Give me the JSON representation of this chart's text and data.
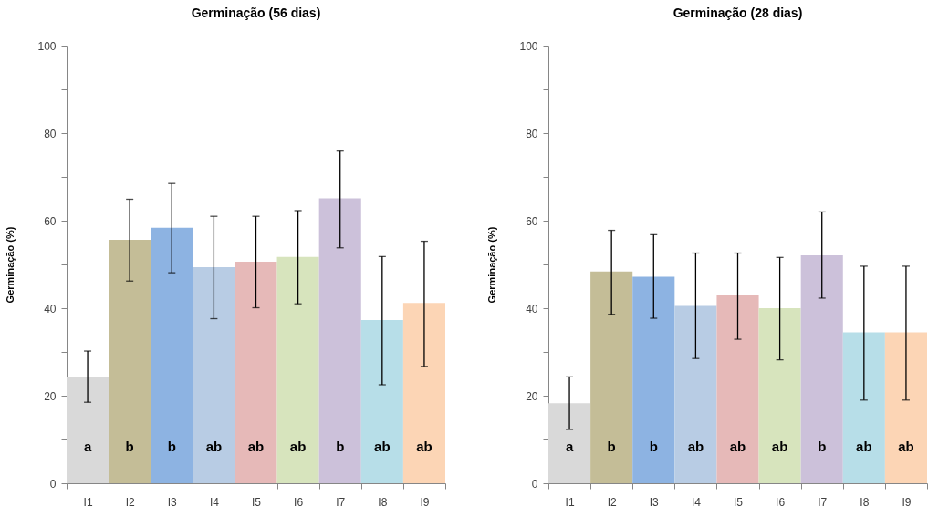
{
  "chart_data": [
    {
      "type": "bar",
      "title": "Germinação (56 dias)",
      "ylabel": "Germinação (%)",
      "categories": [
        "I1",
        "I2",
        "I3",
        "I4",
        "I5",
        "I6",
        "I7",
        "I8",
        "I9"
      ],
      "values": [
        24.3,
        55.6,
        58.4,
        49.4,
        50.6,
        51.7,
        65.1,
        37.3,
        41.2
      ],
      "value_labels": [
        "a",
        "b",
        "b",
        "ab",
        "ab",
        "ab",
        "b",
        "ab",
        "ab"
      ],
      "colors": [
        "#d9d9d9",
        "#c4bd97",
        "#8db3e2",
        "#b8cce4",
        "#e6b9b8",
        "#d7e4bd",
        "#ccc1da",
        "#b7dee8",
        "#fcd5b5"
      ],
      "errors": [
        [
          18.5,
          30.2
        ],
        [
          46.2,
          64.9
        ],
        [
          48.1,
          68.5
        ],
        [
          37.6,
          61.0
        ],
        [
          40.1,
          61.0
        ],
        [
          41.0,
          62.3
        ],
        [
          53.8,
          75.9
        ],
        [
          22.5,
          51.8
        ],
        [
          26.7,
          55.3
        ]
      ],
      "ylim": [
        0,
        100
      ],
      "yticks": [
        0,
        {
          "value": 10,
          "label": null
        },
        20,
        {
          "value": 30,
          "label": null
        },
        40,
        {
          "value": 50,
          "label": null
        },
        60,
        {
          "value": 70,
          "label": null
        },
        80,
        {
          "value": 90,
          "label": null
        },
        100
      ]
    },
    {
      "type": "bar",
      "title": "Germinação (28 dias)",
      "ylabel": "Germinação (%)",
      "categories": [
        "I1",
        "I2",
        "I3",
        "I4",
        "I5",
        "I6",
        "I7",
        "I8",
        "I9"
      ],
      "values": [
        18.3,
        48.4,
        47.2,
        40.5,
        43.0,
        40.0,
        52.1,
        34.5,
        34.5
      ],
      "value_labels": [
        "a",
        "b",
        "b",
        "ab",
        "ab",
        "ab",
        "b",
        "ab",
        "ab"
      ],
      "colors": [
        "#d9d9d9",
        "#c4bd97",
        "#8db3e2",
        "#b8cce4",
        "#e6b9b8",
        "#d7e4bd",
        "#ccc1da",
        "#b7dee8",
        "#fcd5b5"
      ],
      "errors": [
        [
          12.3,
          24.3
        ],
        [
          38.6,
          57.8
        ],
        [
          37.7,
          56.8
        ],
        [
          28.5,
          52.6
        ],
        [
          32.9,
          52.6
        ],
        [
          28.2,
          51.6
        ],
        [
          42.3,
          62.0
        ],
        [
          19.0,
          49.6
        ],
        [
          19.0,
          49.6
        ]
      ],
      "ylim": [
        0,
        100
      ],
      "yticks": [
        0,
        {
          "value": 10,
          "label": null
        },
        20,
        {
          "value": 30,
          "label": null
        },
        40,
        {
          "value": 50,
          "label": null
        },
        60,
        {
          "value": 70,
          "label": null
        },
        80,
        {
          "value": 90,
          "label": null
        },
        100
      ]
    }
  ]
}
